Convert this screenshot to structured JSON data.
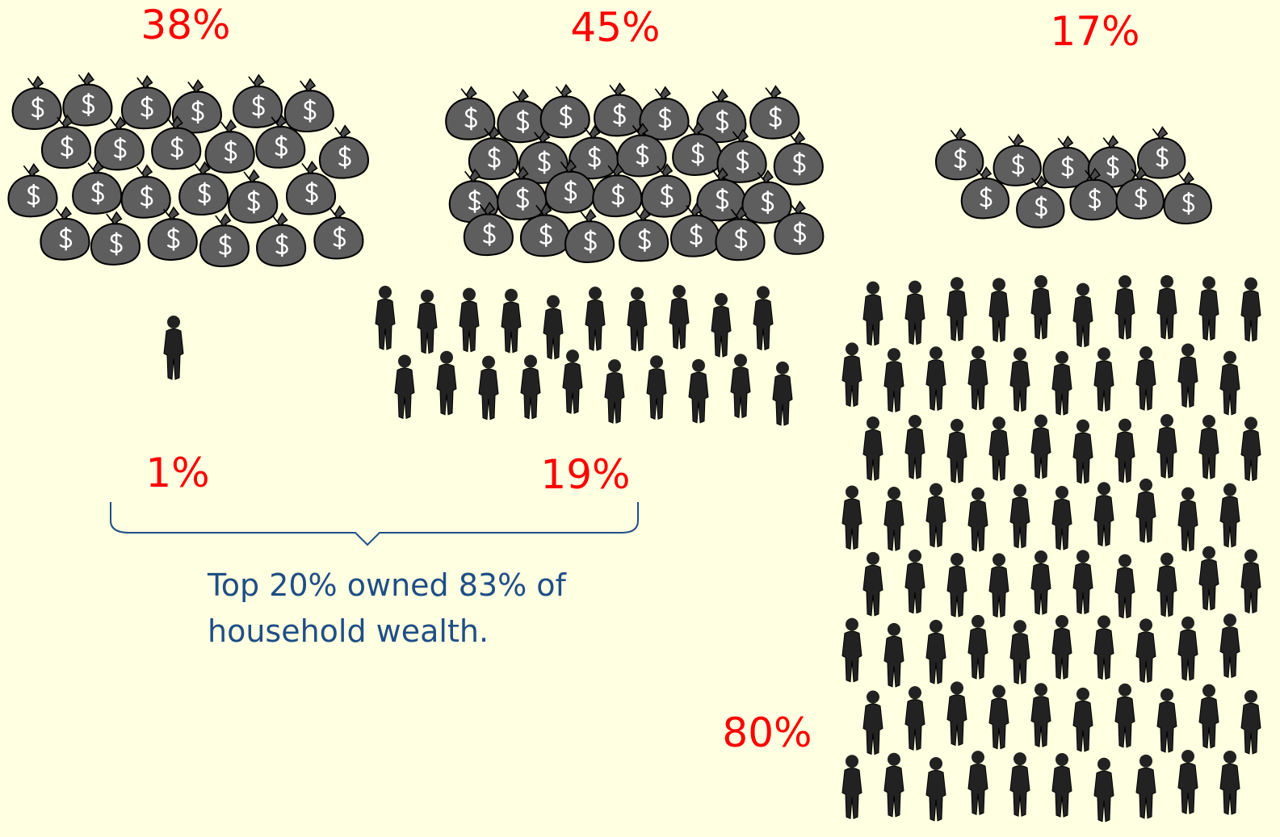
{
  "groups": [
    {
      "wealth": "38%",
      "people": "1%"
    },
    {
      "wealth": "45%",
      "people": "19%"
    },
    {
      "wealth": "17%",
      "people": "80%"
    }
  ],
  "caption": {
    "lines": [
      "Top 20% owned 83% of",
      "household wealth."
    ]
  }
}
